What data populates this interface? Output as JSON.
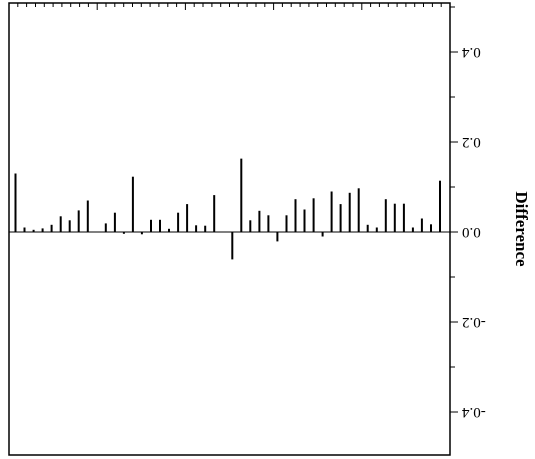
{
  "chart_data": {
    "type": "bar",
    "orientation": "rotated-180",
    "ylabel": "Difference",
    "ylim": [
      -0.5,
      0.5
    ],
    "yticks": [
      -0.4,
      -0.2,
      0.0,
      0.2,
      0.4
    ],
    "ytick_labels": [
      "-0.4",
      "-0.2",
      "0.0",
      "0.2",
      "0.4"
    ],
    "values": [
      0.13,
      0.01,
      0.005,
      0.008,
      0.016,
      0.035,
      0.026,
      0.048,
      0.07,
      0.0,
      0.019,
      0.043,
      -0.004,
      0.123,
      -0.005,
      0.027,
      0.027,
      0.007,
      0.043,
      0.062,
      0.015,
      0.014,
      0.082,
      0.0,
      -0.061,
      0.163,
      0.026,
      0.047,
      0.037,
      -0.021,
      0.037,
      0.073,
      0.05,
      0.075,
      -0.01,
      0.09,
      0.062,
      0.087,
      0.097,
      0.016,
      0.01,
      0.073,
      0.063,
      0.063,
      0.01,
      0.03,
      0.017,
      0.114
    ],
    "grid": false,
    "legend": "none"
  }
}
